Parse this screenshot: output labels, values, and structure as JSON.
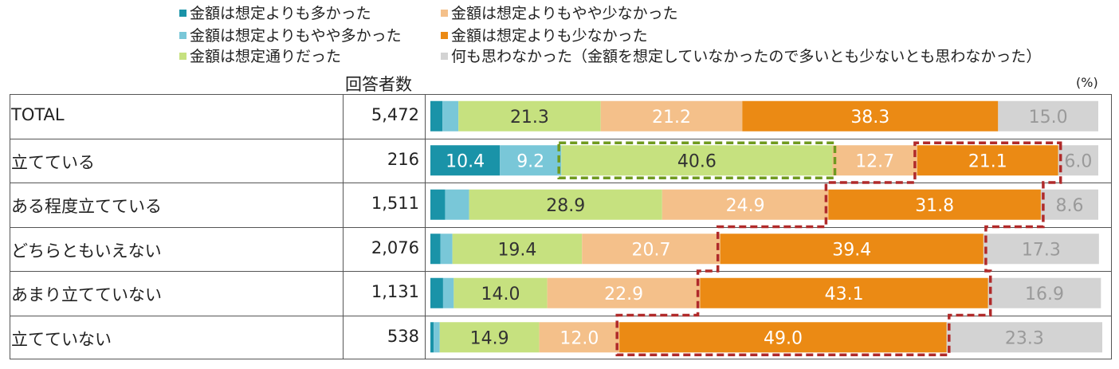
{
  "legend_header": "回答者数",
  "unit_label": "(%)",
  "chart_data": {
    "type": "bar",
    "orientation": "horizontal",
    "stacked": true,
    "count_header": "回答者数",
    "unit": "(%)",
    "xlim": [
      0,
      100
    ],
    "categories": [
      "TOTAL",
      "立てている",
      "ある程度立てている",
      "どちらともいえない",
      "あまり立てていない",
      "立てていない"
    ],
    "counts": [
      "5,472",
      "216",
      "1,511",
      "2,076",
      "1,131",
      "538"
    ],
    "series": [
      {
        "name": "金額は想定よりも多かった",
        "color": "#1a93a8",
        "label_color": "#ffffff",
        "values": [
          1.8,
          10.4,
          2.2,
          1.5,
          1.9,
          0.5
        ]
      },
      {
        "name": "金額は想定よりもやや多かった",
        "color": "#79c7d8",
        "label_color": "#ffffff",
        "values": [
          2.4,
          9.2,
          3.6,
          1.8,
          1.6,
          0.9
        ]
      },
      {
        "name": "金額は想定通りだった",
        "color": "#c6e17f",
        "label_color": "#333333",
        "values": [
          21.3,
          40.6,
          28.9,
          19.4,
          14.0,
          14.9
        ]
      },
      {
        "name": "金額は想定よりもやや少なかった",
        "color": "#f4c08a",
        "label_color": "#ffffff",
        "values": [
          21.2,
          12.7,
          24.9,
          20.7,
          22.9,
          12.0
        ]
      },
      {
        "name": "金額は想定よりも少なかった",
        "color": "#eb8a14",
        "label_color": "#ffffff",
        "values": [
          38.3,
          21.1,
          31.8,
          39.4,
          43.1,
          49.0
        ]
      },
      {
        "name": "何も思わなかった（金額を想定していなかったので多いとも少ないとも思わなかった）",
        "color": "#d3d3d3",
        "label_color": "#9a9a9a",
        "values": [
          15.0,
          6.0,
          8.6,
          17.3,
          16.9,
          23.3
        ]
      }
    ],
    "data_labels": [
      [
        "",
        "",
        "21.3",
        "21.2",
        "38.3",
        "15.0"
      ],
      [
        "10.4",
        "9.2",
        "40.6",
        "12.7",
        "21.1",
        "6.0"
      ],
      [
        "",
        "",
        "28.9",
        "24.9",
        "31.8",
        "8.6"
      ],
      [
        "",
        "",
        "19.4",
        "20.7",
        "39.4",
        "17.3"
      ],
      [
        "",
        "",
        "14.0",
        "22.9",
        "43.1",
        "16.9"
      ],
      [
        "",
        "",
        "14.9",
        "12.0",
        "49.0",
        "23.3"
      ]
    ],
    "highlights": [
      {
        "series": "金額は想定通りだった",
        "rows": [
          "立てている"
        ],
        "color": "#6f9a1f",
        "style": "dashed"
      },
      {
        "series": "金額は想定よりも少なかった",
        "rows": [
          "立てている",
          "ある程度立てている",
          "どちらともいえない",
          "あまり立てていない",
          "立てていない"
        ],
        "color": "#b02a2a",
        "style": "dashed"
      }
    ]
  }
}
